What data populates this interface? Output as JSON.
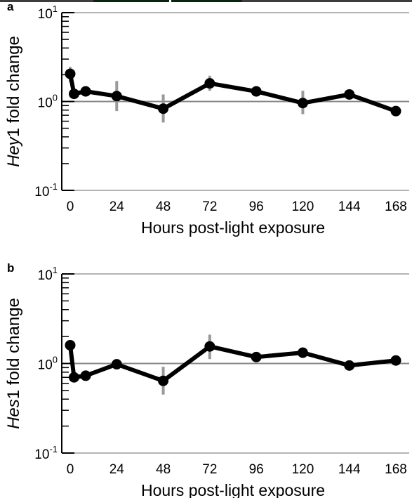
{
  "chart_data": [
    {
      "type": "line",
      "panel_label": "a",
      "ylabel": {
        "italic": "Hey",
        "rest": "1 fold change"
      },
      "xlabel": "Hours post-light exposure",
      "yscale": "log",
      "ylim": [
        0.1,
        10
      ],
      "xlim": [
        -5,
        173
      ],
      "xticks": [
        0,
        24,
        48,
        72,
        96,
        120,
        144,
        168
      ],
      "yticks": [
        {
          "base": "10",
          "exp": "-1",
          "value": 0.1
        },
        {
          "base": "10",
          "exp": "0",
          "value": 1
        },
        {
          "base": "10",
          "exp": "1",
          "value": 10
        }
      ],
      "reference_line": 1,
      "grid": false,
      "line_color": "#000000",
      "errorbar_color": "#999999",
      "series": [
        {
          "x": [
            0,
            2,
            8,
            24,
            48,
            72,
            96,
            120,
            144,
            168
          ],
          "y": [
            2.05,
            1.22,
            1.3,
            1.15,
            0.83,
            1.6,
            1.3,
            0.96,
            1.2,
            0.78
          ],
          "err_low": [
            1.65,
            1.22,
            1.3,
            0.78,
            0.58,
            1.32,
            1.3,
            0.72,
            1.2,
            0.78
          ],
          "err_high": [
            2.45,
            1.22,
            1.3,
            1.7,
            1.2,
            1.95,
            1.3,
            1.32,
            1.2,
            0.78
          ]
        }
      ]
    },
    {
      "type": "line",
      "panel_label": "b",
      "ylabel": {
        "italic": "Hes",
        "rest": "1 fold change"
      },
      "xlabel": "Hours post-light exposure",
      "yscale": "log",
      "ylim": [
        0.1,
        10
      ],
      "xlim": [
        -5,
        173
      ],
      "xticks": [
        0,
        24,
        48,
        72,
        96,
        120,
        144,
        168
      ],
      "yticks": [
        {
          "base": "10",
          "exp": "-1",
          "value": 0.1
        },
        {
          "base": "10",
          "exp": "0",
          "value": 1
        },
        {
          "base": "10",
          "exp": "1",
          "value": 10
        }
      ],
      "reference_line": 1,
      "grid": false,
      "line_color": "#000000",
      "errorbar_color": "#999999",
      "series": [
        {
          "x": [
            0,
            2,
            8,
            24,
            48,
            72,
            96,
            120,
            144,
            168
          ],
          "y": [
            1.6,
            0.7,
            0.73,
            0.98,
            0.64,
            1.55,
            1.18,
            1.32,
            0.95,
            1.08
          ],
          "err_low": [
            1.6,
            0.7,
            0.73,
            0.98,
            0.45,
            1.12,
            1.18,
            1.32,
            0.95,
            1.08
          ],
          "err_high": [
            1.6,
            0.7,
            0.73,
            0.98,
            0.92,
            2.1,
            1.18,
            1.32,
            0.95,
            1.08
          ]
        }
      ]
    }
  ]
}
